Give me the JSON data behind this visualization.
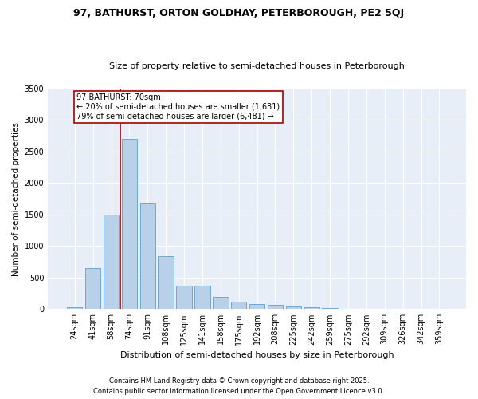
{
  "title1": "97, BATHURST, ORTON GOLDHAY, PETERBOROUGH, PE2 5QJ",
  "title2": "Size of property relative to semi-detached houses in Peterborough",
  "xlabel": "Distribution of semi-detached houses by size in Peterborough",
  "ylabel": "Number of semi-detached properties",
  "categories": [
    "24sqm",
    "41sqm",
    "58sqm",
    "74sqm",
    "91sqm",
    "108sqm",
    "125sqm",
    "141sqm",
    "158sqm",
    "175sqm",
    "192sqm",
    "208sqm",
    "225sqm",
    "242sqm",
    "259sqm",
    "275sqm",
    "292sqm",
    "309sqm",
    "326sqm",
    "342sqm",
    "359sqm"
  ],
  "values": [
    30,
    650,
    1500,
    2700,
    1680,
    840,
    370,
    370,
    195,
    120,
    75,
    65,
    45,
    25,
    15,
    8,
    4,
    2,
    1,
    0,
    0
  ],
  "bar_color": "#b8d0e8",
  "bar_edge_color": "#6fa8d0",
  "ylim": [
    0,
    3500
  ],
  "yticks": [
    0,
    500,
    1000,
    1500,
    2000,
    2500,
    3000,
    3500
  ],
  "annotation_text": "97 BATHURST: 70sqm\n← 20% of semi-detached houses are smaller (1,631)\n79% of semi-detached houses are larger (6,481) →",
  "vline_color": "#aa0000",
  "background_color": "#e8eef8",
  "footer1": "Contains HM Land Registry data © Crown copyright and database right 2025.",
  "footer2": "Contains public sector information licensed under the Open Government Licence v3.0.",
  "title1_fontsize": 9,
  "title2_fontsize": 8,
  "ylabel_fontsize": 7.5,
  "xlabel_fontsize": 8,
  "tick_fontsize": 7,
  "footer_fontsize": 6,
  "annot_fontsize": 7
}
